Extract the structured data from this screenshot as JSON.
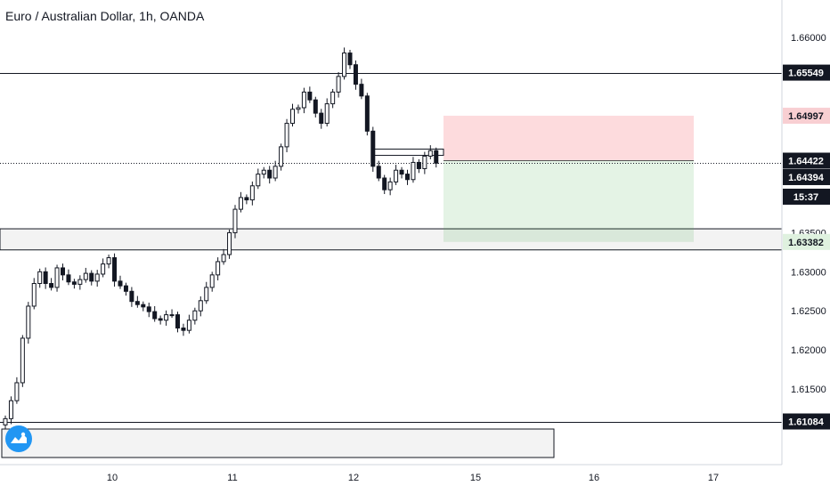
{
  "header": {
    "title": "Euro / Australian Dollar, 1h, OANDA"
  },
  "chart_data": {
    "type": "candlestick",
    "symbol": "Euro / Australian Dollar",
    "interval": "1h",
    "source": "OANDA",
    "x_tick_labels": [
      "10",
      "11",
      "12",
      "15",
      "16",
      "17"
    ],
    "y_tick_labels": [
      "1.66000",
      "1.61500",
      "1.62000",
      "1.62500",
      "1.63000",
      "1.63500"
    ],
    "ylim": [
      1.6085,
      1.6625
    ],
    "price_tags": [
      {
        "label": "1.65549",
        "value": 1.65549,
        "style": "horizontal-line"
      },
      {
        "label": "1.64997",
        "value": 1.64997,
        "style": "stop-loss"
      },
      {
        "label": "1.64422",
        "value": 1.64422,
        "style": "entry"
      },
      {
        "label": "1.64394",
        "value": 1.64394,
        "style": "last-price"
      },
      {
        "label": "15:37",
        "value": 1.64394,
        "style": "countdown"
      },
      {
        "label": "1.63382",
        "value": 1.63382,
        "style": "take-profit"
      },
      {
        "label": "1.61084",
        "value": 1.61084,
        "style": "horizontal-line"
      }
    ],
    "horizontal_lines": [
      1.65549,
      1.61084
    ],
    "support_zone": [
      1.6328,
      1.6355
    ],
    "position": {
      "type": "long",
      "entry": 1.64422,
      "stop": 1.64997,
      "target": 1.63382
    },
    "close_series": [
      1.6112,
      1.6135,
      1.6158,
      1.6215,
      1.6256,
      1.6285,
      1.63,
      1.6285,
      1.628,
      1.6305,
      1.6296,
      1.6287,
      1.6284,
      1.629,
      1.6298,
      1.6288,
      1.6297,
      1.631,
      1.6318,
      1.6288,
      1.6282,
      1.6275,
      1.6262,
      1.6258,
      1.6255,
      1.6249,
      1.624,
      1.6238,
      1.6245,
      1.6245,
      1.6228,
      1.6225,
      1.6238,
      1.625,
      1.6263,
      1.628,
      1.6296,
      1.6313,
      1.6322,
      1.635,
      1.638,
      1.6395,
      1.6392,
      1.641,
      1.6425,
      1.643,
      1.642,
      1.6435,
      1.646,
      1.649,
      1.6508,
      1.651,
      1.653,
      1.652,
      1.6503,
      1.649,
      1.6515,
      1.653,
      1.655,
      1.658,
      1.6565,
      1.654,
      1.6525,
      1.648,
      1.6435,
      1.642,
      1.6405,
      1.6415,
      1.643,
      1.6425,
      1.6418,
      1.644,
      1.6432,
      1.6448,
      1.6455,
      1.6439
    ]
  }
}
